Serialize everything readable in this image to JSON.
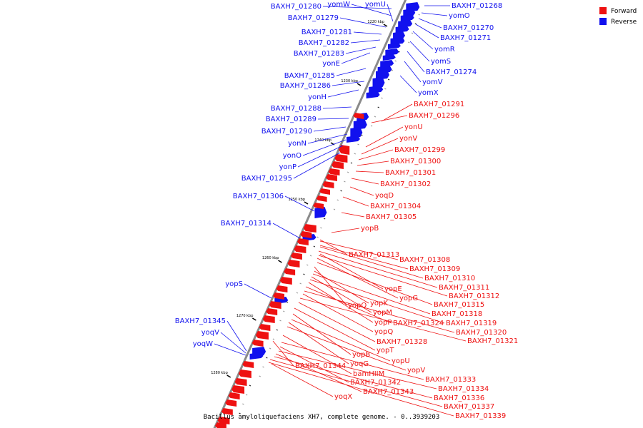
{
  "caption": "Bacillus amyloliquefaciens XH7, complete genome. - 0..3939203",
  "legend": [
    {
      "label": "Forward",
      "color": "#ee1111"
    },
    {
      "label": "Reverse",
      "color": "#1111ee"
    }
  ],
  "colors": {
    "forward": "#ee1111",
    "reverse": "#1111ee",
    "backbone": "#8a8a8a"
  },
  "ticks": [
    "1220 kbp",
    "1230 kbp",
    "1240 kbp",
    "1250 kbp",
    "1260 kbp",
    "1270 kbp",
    "1280 kbp"
  ],
  "reverse_genes": [
    "BAXH7_01280",
    "yomW",
    "yomU",
    "BAXH7_01279",
    "BAXH7_01281",
    "BAXH7_01282",
    "BAXH7_01283",
    "yonE",
    "BAXH7_01285",
    "BAXH7_01286",
    "yonH",
    "BAXH7_01288",
    "BAXH7_01289",
    "BAXH7_01290",
    "yonN",
    "yonO",
    "yonP",
    "BAXH7_01295",
    "BAXH7_01306",
    "BAXH7_01314",
    "yopS",
    "BAXH7_01345",
    "yoqV",
    "yoqW",
    "BAXH7_01268",
    "yomO",
    "BAXH7_01270",
    "BAXH7_01271",
    "yomR",
    "yomS",
    "BAXH7_01274",
    "yomV",
    "yomX"
  ],
  "forward_genes": [
    "BAXH7_01291",
    "BAXH7_01296",
    "yonU",
    "yonV",
    "BAXH7_01299",
    "BAXH7_01300",
    "BAXH7_01301",
    "BAXH7_01302",
    "yoqD",
    "BAXH7_01304",
    "BAXH7_01305",
    "yopB",
    "BAXH7_01313",
    "BAXH7_01308",
    "BAXH7_01309",
    "BAXH7_01310",
    "BAXH7_01311",
    "yopE",
    "BAXH7_01312",
    "yopG",
    "BAXH7_01315",
    "yopO",
    "yopK",
    "BAXH7_01318",
    "yopM",
    "BAXH7_01319",
    "yopP",
    "BAXH7_01324",
    "BAXH7_01320",
    "yopQ",
    "BAXH7_01321",
    "BAXH7_01328",
    "yopT",
    "yopB",
    "yopU",
    "yoqG",
    "yopV",
    "BAXH7_01344",
    "bamHIIM",
    "BAXH7_01333",
    "BAXH7_01342",
    "BAXH7_01334",
    "BAXH7_01343",
    "BAXH7_01336",
    "yoqX",
    "BAXH7_01337",
    "BAXH7_01339"
  ]
}
